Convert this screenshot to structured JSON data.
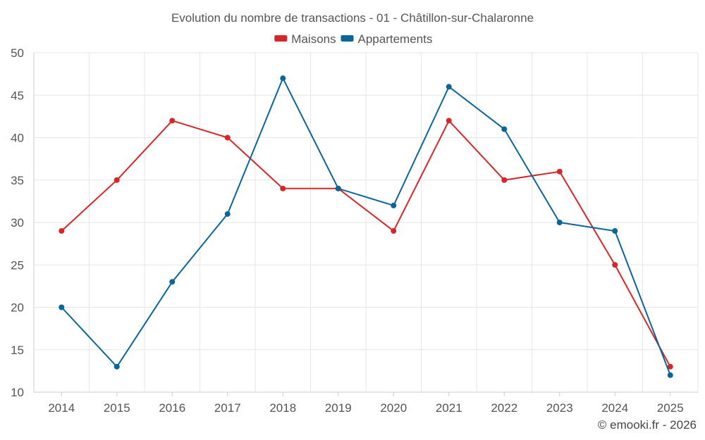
{
  "chart_data": {
    "type": "line",
    "title": "Evolution du nombre de transactions - 01 - Châtillon-sur-Chalaronne",
    "xlabel": "",
    "ylabel": "",
    "categories": [
      "2014",
      "2015",
      "2016",
      "2017",
      "2018",
      "2019",
      "2020",
      "2021",
      "2022",
      "2023",
      "2024",
      "2025"
    ],
    "ylim": [
      10,
      50
    ],
    "yticks": [
      10,
      15,
      20,
      25,
      30,
      35,
      40,
      45,
      50
    ],
    "grid": true,
    "legend_position": "top-center",
    "series": [
      {
        "name": "Maisons",
        "color": "#d62728",
        "values": [
          29,
          35,
          42,
          40,
          34,
          34,
          29,
          42,
          35,
          36,
          25,
          13
        ]
      },
      {
        "name": "Appartements",
        "color": "#0a6699",
        "values": [
          20,
          13,
          23,
          31,
          47,
          34,
          32,
          46,
          41,
          30,
          29,
          12
        ]
      }
    ],
    "credit": "© emooki.fr - 2026"
  }
}
